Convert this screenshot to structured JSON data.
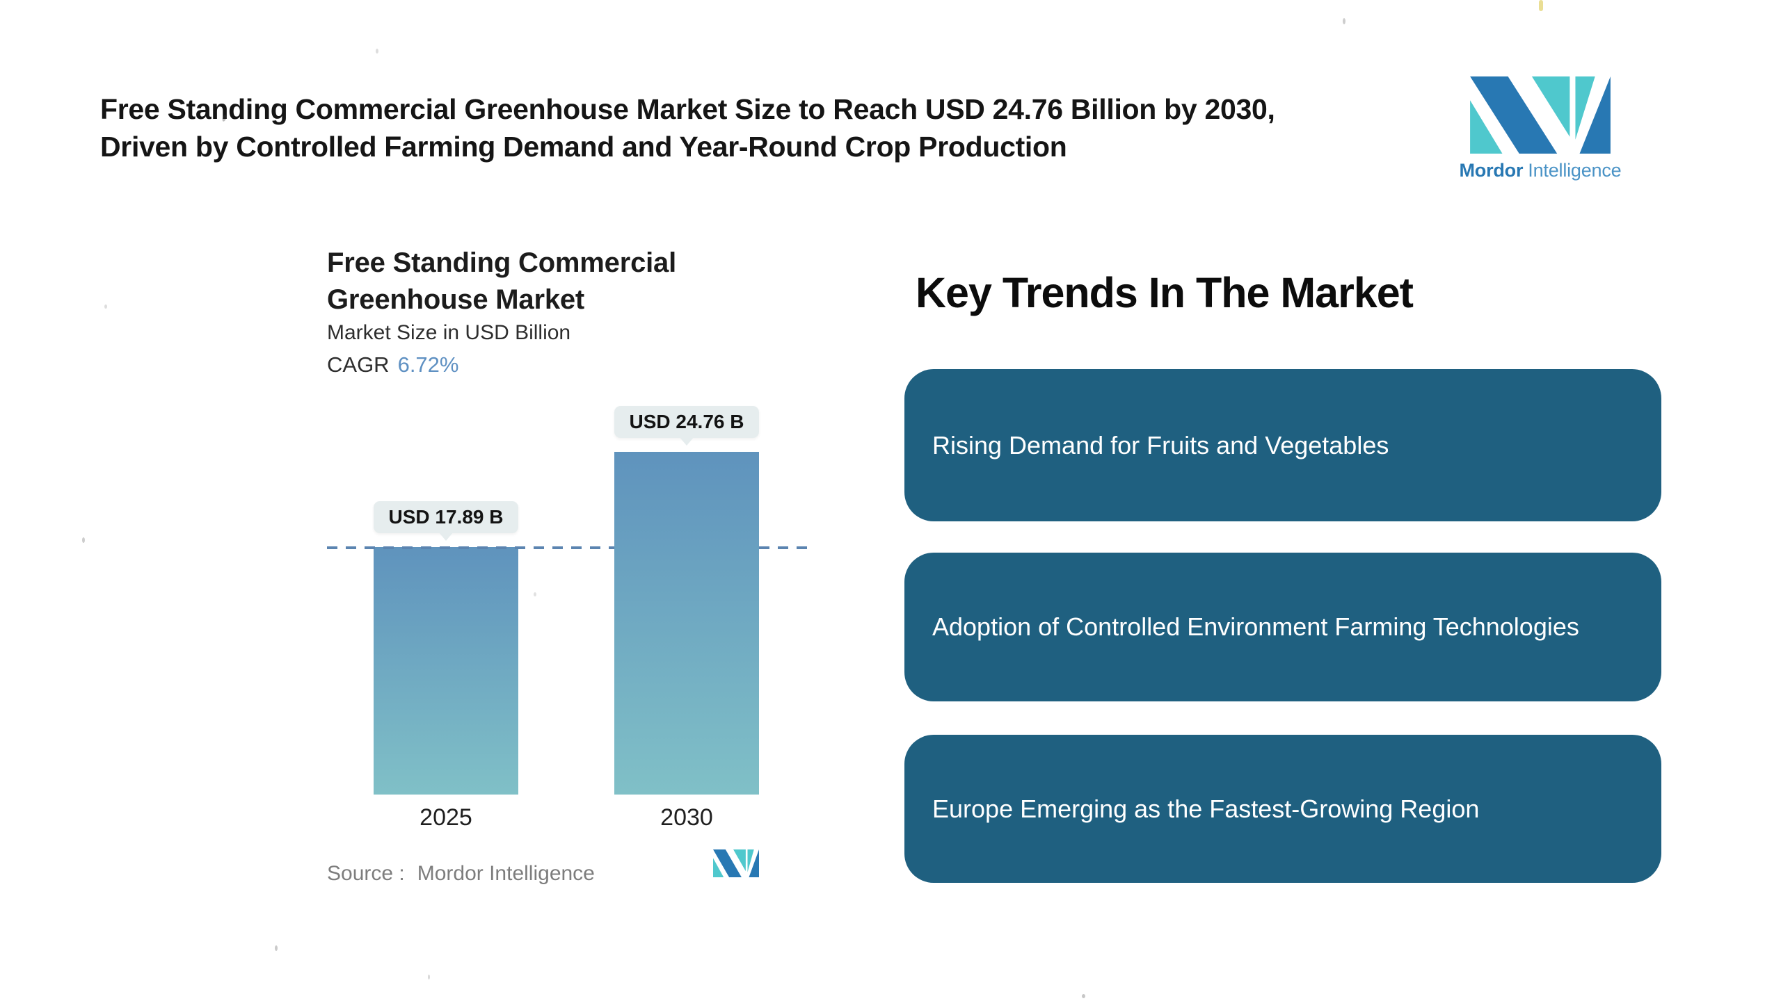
{
  "header": {
    "title_line1": "Free Standing Commercial Greenhouse Market Size to Reach USD 24.76 Billion by 2030,",
    "title_line2": "Driven by Controlled Farming Demand and Year-Round Crop Production"
  },
  "brand": {
    "name_bold": "Mordor",
    "name_light": "Intelligence"
  },
  "chart_data": {
    "type": "bar",
    "title": "Free Standing Commercial Greenhouse Market",
    "subtitle": "Market Size in USD Billion",
    "cagr_label": "CAGR",
    "cagr_value": "6.72%",
    "categories": [
      "2025",
      "2030"
    ],
    "values": [
      17.89,
      24.76
    ],
    "value_labels": [
      "USD 17.89 B",
      "USD 24.76 B"
    ],
    "ylabel": "Market Size in USD Billion",
    "ylim": [
      0,
      24.76
    ],
    "grid": "off",
    "legend": "none",
    "baseline_dash_at_value": 17.89,
    "source_label": "Source :",
    "source_value": "Mordor Intelligence"
  },
  "trends": {
    "heading": "Key Trends In The Market",
    "items": [
      "Rising Demand for Fruits and Vegetables",
      "Adoption of Controlled Environment Farming Technologies",
      "Europe Emerging as the Fastest-Growing Region"
    ]
  },
  "colors": {
    "brand_blue": "#2878b3",
    "brand_blue_light": "#4a93c6",
    "brand_teal": "#4fc8cd",
    "trend_box": "#1f6080",
    "bar_top": "#5f93bd",
    "bar_bottom": "#80c0c7",
    "dash": "#5b84b0",
    "callout_bg": "#e6edee",
    "cagr_value": "#5e90c2",
    "source_text": "#7d7d7d"
  }
}
